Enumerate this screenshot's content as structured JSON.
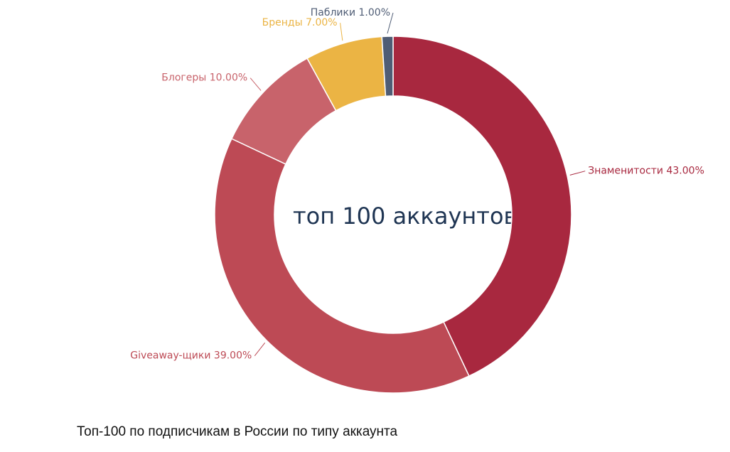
{
  "chart_data": {
    "type": "pie",
    "title": "Топ-100 по подписчикам в России по типу аккаунта",
    "center_label": "топ 100 аккаунтов",
    "categories": [
      "Знаменитости",
      "Giveaway-щики",
      "Блогеры",
      "Бренды",
      "Паблики"
    ],
    "values": [
      43,
      39,
      10,
      7,
      1
    ],
    "value_labels": [
      "43.00%",
      "39.00%",
      "10.00%",
      "7.00%",
      "1.00%"
    ],
    "colors": [
      "#a8283f",
      "#bd4a55",
      "#c8636b",
      "#ebb444",
      "#4f5d75"
    ]
  }
}
